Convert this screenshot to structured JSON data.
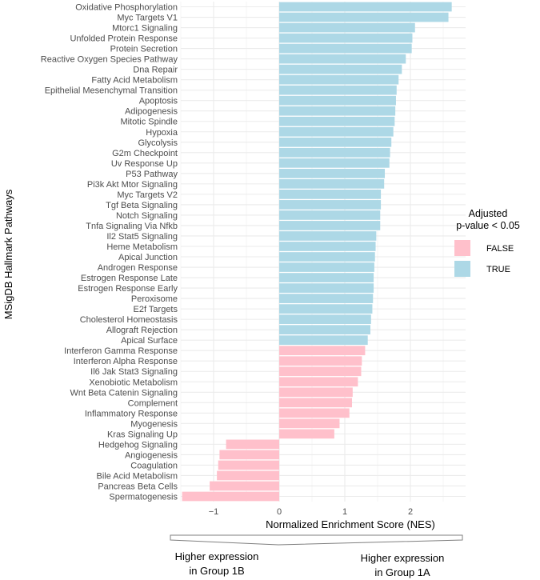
{
  "colors": {
    "true": "#add8e6",
    "false": "#ffc0cb",
    "grid": "#ebebeb",
    "bracket": "#7f7f7f"
  },
  "chart_data": {
    "type": "bar",
    "orientation": "horizontal",
    "xlabel": "Normalized Enrichment Score (NES)",
    "ylabel": "MSigDB Hallmark Pathways",
    "xlim": [
      -1.5,
      2.75
    ],
    "xticks": [
      -1,
      0,
      1,
      2
    ],
    "xtick_labels": [
      "−1",
      "0",
      "1",
      "2"
    ],
    "grid": true,
    "legend": {
      "title_line1": "Adjusted",
      "title_line2": "p-value < 0.05",
      "position": "right",
      "entries": [
        {
          "label": "FALSE",
          "key": "false"
        },
        {
          "label": "TRUE",
          "key": "true"
        }
      ]
    },
    "categories": [
      "Oxidative Phosphorylation",
      "Myc Targets V1",
      "Mtorc1 Signaling",
      "Unfolded Protein Response",
      "Protein Secretion",
      "Reactive Oxygen Species Pathway",
      "Dna Repair",
      "Fatty Acid Metabolism",
      "Epithelial Mesenchymal Transition",
      "Apoptosis",
      "Adipogenesis",
      "Mitotic Spindle",
      "Hypoxia",
      "Glycolysis",
      "G2m Checkpoint",
      "Uv Response Up",
      "P53 Pathway",
      "Pi3k Akt Mtor Signaling",
      "Myc Targets V2",
      "Tgf Beta Signaling",
      "Notch Signaling",
      "Tnfa Signaling Via Nfkb",
      "Il2 Stat5 Signaling",
      "Heme Metabolism",
      "Apical Junction",
      "Androgen Response",
      "Estrogen Response Late",
      "Estrogen Response Early",
      "Peroxisome",
      "E2f Targets",
      "Cholesterol Homeostasis",
      "Allograft Rejection",
      "Apical Surface",
      "Interferon Gamma Response",
      "Interferon Alpha Response",
      "Il6 Jak Stat3 Signaling",
      "Xenobiotic Metabolism",
      "Wnt Beta Catenin Signaling",
      "Complement",
      "Inflammatory Response",
      "Myogenesis",
      "Kras Signaling Up",
      "Hedgehog Signaling",
      "Angiogenesis",
      "Coagulation",
      "Bile Acid Metabolism",
      "Pancreas Beta Cells",
      "Spermatogenesis"
    ],
    "values": [
      2.63,
      2.58,
      2.07,
      2.03,
      2.02,
      1.93,
      1.87,
      1.82,
      1.79,
      1.78,
      1.77,
      1.76,
      1.74,
      1.71,
      1.69,
      1.68,
      1.61,
      1.6,
      1.55,
      1.55,
      1.54,
      1.54,
      1.48,
      1.47,
      1.46,
      1.45,
      1.44,
      1.44,
      1.43,
      1.42,
      1.4,
      1.39,
      1.35,
      1.31,
      1.26,
      1.25,
      1.2,
      1.12,
      1.11,
      1.07,
      0.92,
      0.84,
      -0.81,
      -0.91,
      -0.93,
      -0.95,
      -1.06,
      -1.48
    ],
    "significant": [
      true,
      true,
      true,
      true,
      true,
      true,
      true,
      true,
      true,
      true,
      true,
      true,
      true,
      true,
      true,
      true,
      true,
      true,
      true,
      true,
      true,
      true,
      true,
      true,
      true,
      true,
      true,
      true,
      true,
      true,
      true,
      true,
      true,
      false,
      false,
      false,
      false,
      false,
      false,
      false,
      false,
      false,
      false,
      false,
      false,
      false,
      false,
      false
    ],
    "annotations": {
      "left_line1": "Higher expression",
      "left_line2": "in Group 1B",
      "right_line1": "Higher expression",
      "right_line2": "in Group 1A"
    }
  }
}
